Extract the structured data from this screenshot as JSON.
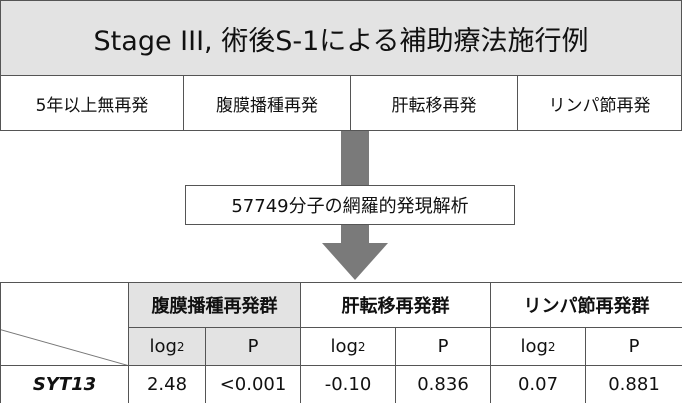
{
  "header": {
    "title": "Stage III, 術後S-1による補助療法施行例",
    "groups": [
      "5年以上無再発",
      "腹膜播種再発",
      "肝転移再発",
      "リンパ節再発"
    ]
  },
  "process": {
    "label": "57749分子の網羅的発現解析"
  },
  "table": {
    "group_headers": [
      "腹膜播種再発群",
      "肝転移再発群",
      "リンパ節再発群"
    ],
    "sub_headers": [
      {
        "base": "log",
        "sub": "2"
      },
      "P",
      {
        "base": "log",
        "sub": "2"
      },
      "P",
      {
        "base": "log",
        "sub": "2"
      },
      "P"
    ],
    "rows": [
      [
        "SYT13",
        "2.48",
        "<0.001",
        "-0.10",
        "0.836",
        "0.07",
        "0.881"
      ]
    ]
  }
}
